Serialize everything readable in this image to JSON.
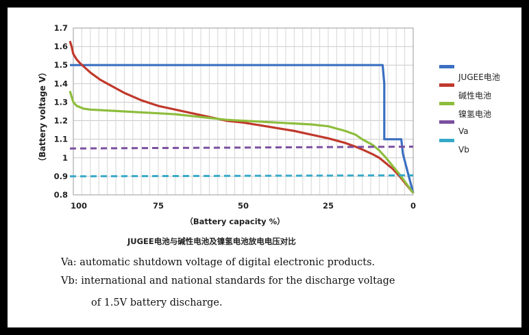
{
  "chart_data": {
    "type": "line",
    "title": "JUGEE电池与碱性电池及镍氢电池放电电压对比",
    "xlabel": "（Battery capacity %）",
    "ylabel": "（Battery voltage V）",
    "x_ticks": [
      "100",
      "75",
      "50",
      "25",
      "0"
    ],
    "y_ticks": [
      "1.7",
      "1.6",
      "1.5",
      "1.4",
      "1.3",
      "1.2",
      "1.1",
      "1",
      "0.9",
      "0.8"
    ],
    "xlim": [
      100,
      0
    ],
    "ylim": [
      0.8,
      1.7
    ],
    "grid": true,
    "legend_position": "right",
    "series": [
      {
        "name": "JUGEE电池",
        "color": "#3a6fc0",
        "style": "solid",
        "x": [
          101,
          9,
          8.5,
          8.5,
          3.5,
          3,
          0
        ],
        "y": [
          1.5,
          1.5,
          1.4,
          1.1,
          1.1,
          1.02,
          0.81
        ]
      },
      {
        "name": "碱性电池",
        "color": "#c0392b",
        "style": "solid",
        "x": [
          101,
          100.5,
          100,
          99,
          98,
          95,
          92,
          90,
          85,
          80,
          75,
          70,
          65,
          60,
          55,
          50,
          45,
          40,
          35,
          30,
          25,
          20,
          17,
          15,
          12,
          10,
          8,
          6,
          4,
          2,
          0
        ],
        "y": [
          1.63,
          1.6,
          1.56,
          1.53,
          1.51,
          1.46,
          1.42,
          1.4,
          1.35,
          1.31,
          1.28,
          1.26,
          1.24,
          1.22,
          1.2,
          1.19,
          1.175,
          1.16,
          1.145,
          1.125,
          1.105,
          1.08,
          1.06,
          1.045,
          1.02,
          1.0,
          0.97,
          0.94,
          0.9,
          0.855,
          0.81
        ]
      },
      {
        "name": "镍氢电池",
        "color": "#8dbd3c",
        "style": "solid",
        "x": [
          101,
          100,
          99,
          97,
          95,
          90,
          85,
          80,
          75,
          70,
          65,
          60,
          55,
          50,
          45,
          40,
          35,
          30,
          25,
          20,
          17,
          15,
          12,
          10,
          8,
          6,
          4,
          2,
          0
        ],
        "y": [
          1.36,
          1.3,
          1.28,
          1.265,
          1.26,
          1.255,
          1.25,
          1.245,
          1.24,
          1.235,
          1.225,
          1.215,
          1.205,
          1.2,
          1.195,
          1.19,
          1.185,
          1.18,
          1.17,
          1.145,
          1.125,
          1.1,
          1.07,
          1.04,
          1.0,
          0.955,
          0.91,
          0.86,
          0.81
        ]
      },
      {
        "name": "Va",
        "color": "#7b4fa0",
        "style": "dashed",
        "x": [
          101,
          0
        ],
        "y": [
          1.05,
          1.06
        ]
      },
      {
        "name": "Vb",
        "color": "#36a9c9",
        "style": "dashed",
        "x": [
          101,
          0
        ],
        "y": [
          0.9,
          0.905
        ]
      }
    ]
  },
  "notes": [
    "Va: automatic shutdown voltage of digital electronic products.",
    "Vb: international and national standards for the discharge voltage",
    "of 1.5V battery discharge."
  ]
}
